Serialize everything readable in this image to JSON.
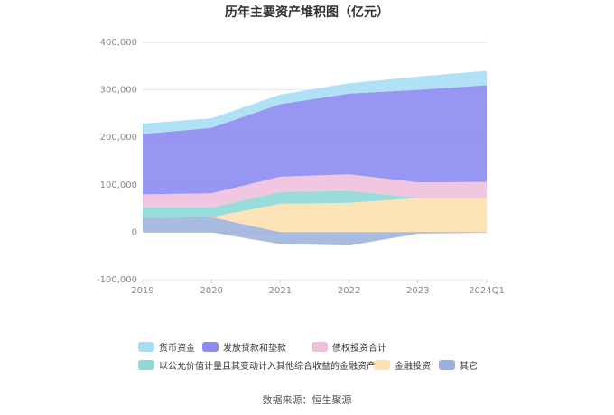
{
  "chart_data": {
    "type": "area",
    "title": "历年主要资产堆积图（亿元）",
    "source": "数据来源：恒生聚源",
    "categories": [
      "2019",
      "2020",
      "2021",
      "2022",
      "2023",
      "2024Q1"
    ],
    "ylim": [
      -100000,
      400000
    ],
    "yticks": [
      400000,
      300000,
      200000,
      100000,
      0,
      -100000
    ],
    "ytick_labels": [
      "400,000",
      "300,000",
      "200,000",
      "100,000",
      "0",
      "-100,000"
    ],
    "grid": true,
    "legend_position": "bottom",
    "series": [
      {
        "name": "货币资金",
        "color": "#a8def5",
        "values": [
          22000,
          20000,
          20000,
          22000,
          28000,
          30000
        ]
      },
      {
        "name": "发放贷款和垫款",
        "color": "#8c8cf2",
        "values": [
          127000,
          138000,
          153000,
          170000,
          195000,
          204000
        ]
      },
      {
        "name": "债权投资合计",
        "color": "#eec0de",
        "values": [
          28000,
          30000,
          32000,
          35000,
          32000,
          33000
        ]
      },
      {
        "name": "以公允价值计量且其变动计入其他综合收益的金融资产",
        "color": "#8ed9d6",
        "values": [
          22000,
          20000,
          25000,
          25000,
          1000,
          1000
        ]
      },
      {
        "name": "金融投资",
        "color": "#fde0b0",
        "values": [
          0,
          0,
          60000,
          62000,
          72000,
          72000
        ]
      },
      {
        "name": "其它",
        "color": "#9aafdc",
        "values": [
          30000,
          32000,
          -25000,
          -28000,
          -3000,
          -1000
        ]
      }
    ]
  }
}
